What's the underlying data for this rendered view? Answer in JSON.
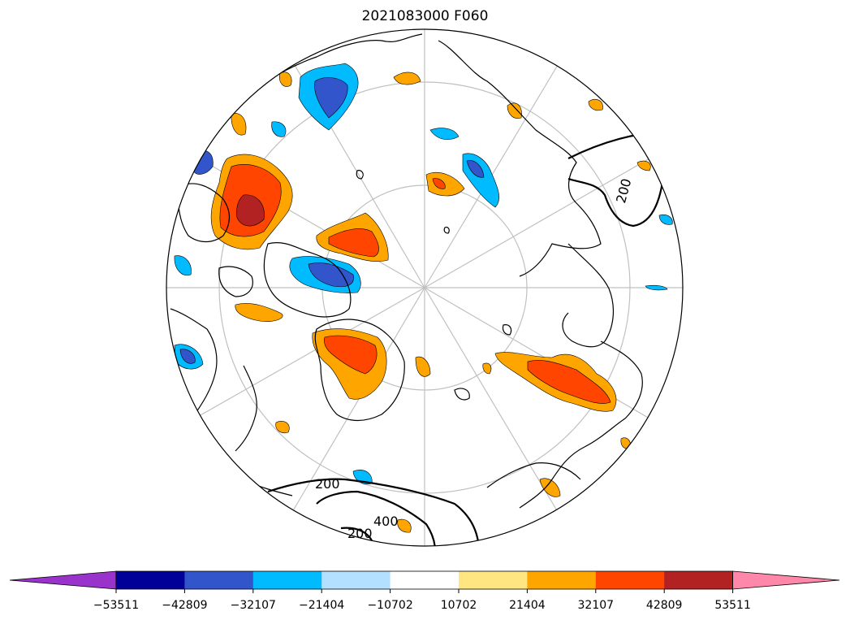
{
  "title": "2021083000 F060",
  "colorbar": {
    "ticks": [
      "−53511",
      "−42809",
      "−32107",
      "−21404",
      "−10702",
      "10702",
      "21404",
      "32107",
      "42809",
      "53511"
    ],
    "colors": [
      "#9933cc",
      "#000099",
      "#3355cc",
      "#00bbff",
      "#b3e0ff",
      "#ffffff",
      "#ffe680",
      "#ffa500",
      "#ff4500",
      "#b22222",
      "#ff88aa"
    ]
  },
  "contour_labels": [
    "200",
    "200",
    "400",
    "200"
  ],
  "colors": {
    "land_outline": "#000000",
    "graticule": "#c0c0c0"
  }
}
